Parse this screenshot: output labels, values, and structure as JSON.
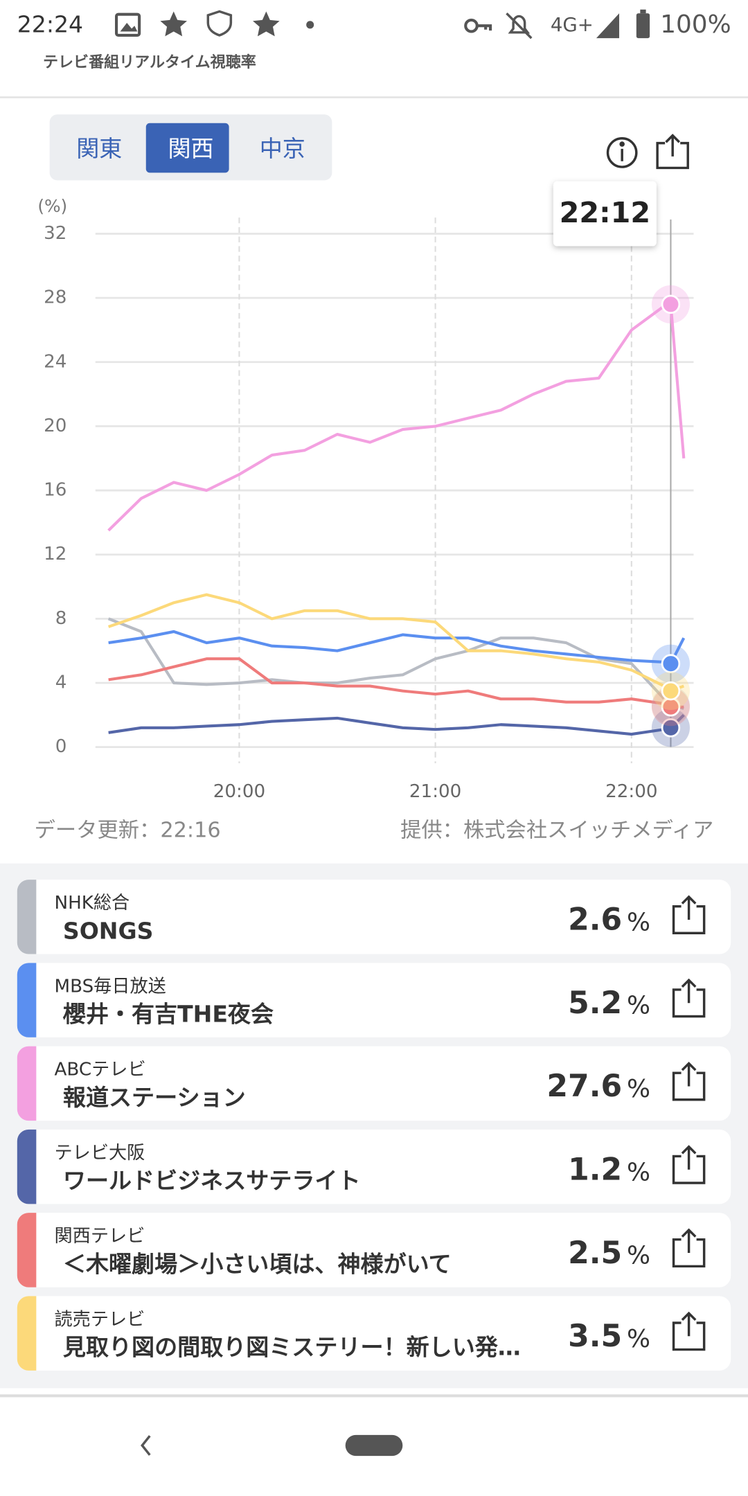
{
  "status_bar": {
    "time": "22:24",
    "network": "4G+",
    "battery": "100%"
  },
  "header": {
    "title": "テレビ番組リアルタイム視聴率"
  },
  "tabs": {
    "items": [
      "関東",
      "関西",
      "中京"
    ],
    "selected": 1
  },
  "chart_data": {
    "type": "line",
    "y_unit_label": "(%)",
    "x": [
      "19:20",
      "19:30",
      "19:40",
      "19:50",
      "20:00",
      "20:10",
      "20:20",
      "20:30",
      "20:40",
      "20:50",
      "21:00",
      "21:10",
      "21:20",
      "21:30",
      "21:40",
      "21:50",
      "22:00",
      "22:10",
      "22:12",
      "22:16"
    ],
    "xlim": [
      "19:16",
      "22:19"
    ],
    "xticks": [
      "20:00",
      "21:00",
      "22:00"
    ],
    "ylim": [
      0,
      32
    ],
    "yticks": [
      0,
      4,
      8,
      12,
      16,
      20,
      24,
      28,
      32
    ],
    "grid": true,
    "cursor_index": 18,
    "series": [
      {
        "name": "NHK総合",
        "color": "#b8bcc4",
        "values": [
          8.0,
          7.2,
          4.0,
          3.9,
          4.0,
          4.2,
          4.0,
          4.0,
          4.3,
          4.5,
          5.5,
          6.0,
          6.8,
          6.8,
          6.5,
          5.5,
          5.2,
          3.0,
          2.6,
          2.4
        ]
      },
      {
        "name": "MBS毎日放送",
        "color": "#5b8ff0",
        "values": [
          6.5,
          6.8,
          7.2,
          6.5,
          6.8,
          6.3,
          6.2,
          6.0,
          6.5,
          7.0,
          6.8,
          6.8,
          6.3,
          6.0,
          5.8,
          5.6,
          5.4,
          5.3,
          5.2,
          6.8
        ]
      },
      {
        "name": "ABCテレビ",
        "color": "#f3a0e0",
        "values": [
          13.5,
          15.5,
          16.5,
          16.0,
          17.0,
          18.2,
          18.5,
          19.5,
          19.0,
          19.8,
          20.0,
          20.5,
          21.0,
          22.0,
          22.8,
          23.0,
          26.0,
          27.5,
          27.6,
          18.0
        ]
      },
      {
        "name": "テレビ大阪",
        "color": "#5466a8",
        "values": [
          0.9,
          1.2,
          1.2,
          1.3,
          1.4,
          1.6,
          1.7,
          1.8,
          1.5,
          1.2,
          1.1,
          1.2,
          1.4,
          1.3,
          1.2,
          1.0,
          0.8,
          1.1,
          1.2,
          2.0
        ]
      },
      {
        "name": "関西テレビ",
        "color": "#ef7b7b",
        "values": [
          4.2,
          4.5,
          5.0,
          5.5,
          5.5,
          4.0,
          4.0,
          3.8,
          3.8,
          3.5,
          3.3,
          3.5,
          3.0,
          3.0,
          2.8,
          2.8,
          3.0,
          2.7,
          2.5,
          2.5
        ]
      },
      {
        "name": "読売テレビ",
        "color": "#fcd97a",
        "values": [
          7.5,
          8.2,
          9.0,
          9.5,
          9.0,
          8.0,
          8.5,
          8.5,
          8.0,
          8.0,
          7.8,
          6.0,
          6.0,
          5.8,
          5.5,
          5.3,
          4.8,
          3.8,
          3.5,
          3.8
        ]
      }
    ]
  },
  "footer": {
    "updated": "データ更新：22:16",
    "provider": "提供：株式会社スイッチメディア"
  },
  "programs": [
    {
      "title": "SONGS",
      "rating": 2.6,
      "unit": "%"
    },
    {
      "title": "櫻井・有吉THE夜会",
      "rating": 5.2,
      "unit": "%"
    },
    {
      "title": "報道ステーション",
      "rating": 27.6,
      "unit": "%"
    },
    {
      "title": "ワールドビジネスサテライト",
      "rating": 1.2,
      "unit": "%"
    },
    {
      "title": "＜木曜劇場＞小さい頃は、神様がいて",
      "rating": 2.5,
      "unit": "%"
    },
    {
      "title": "見取り図の間取り図ミステリー！新しい発…",
      "rating": 3.5,
      "unit": "%"
    }
  ]
}
